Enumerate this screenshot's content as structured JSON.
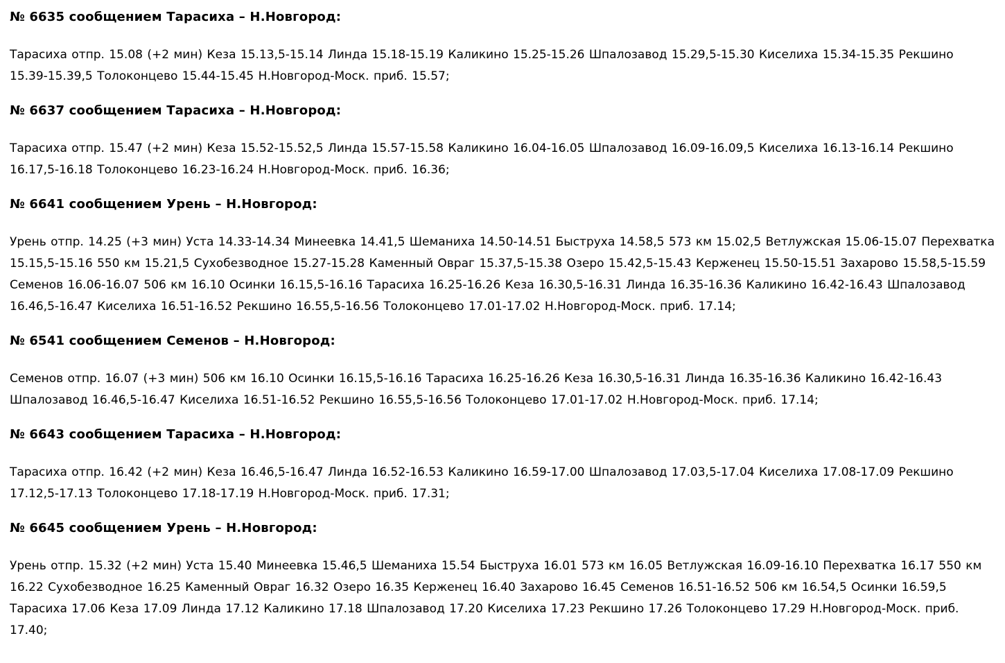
{
  "page": {
    "background_color": "#ffffff",
    "text_color": "#000000",
    "document_type": "suburban train timetable"
  },
  "schedules": [
    {
      "heading": "№ 6635 сообщением Тарасиха – Н.Новгород:",
      "body": "Тарасиха отпр. 15.08 (+2 мин) Кеза 15.13,5-15.14 Линда 15.18-15.19 Каликино 15.25-15.26 Шпалозавод 15.29,5-15.30 Киселиха 15.34-15.35 Рекшино 15.39-15.39,5 Толоконцево 15.44-15.45 Н.Новгород-Моск. приб. 15.57;"
    },
    {
      "heading": "№ 6637 сообщением Тарасиха – Н.Новгород:",
      "body": "Тарасиха отпр. 15.47 (+2 мин) Кеза 15.52-15.52,5 Линда 15.57-15.58 Каликино 16.04-16.05 Шпалозавод 16.09-16.09,5 Киселиха 16.13-16.14 Рекшино 16.17,5-16.18 Толоконцево 16.23-16.24 Н.Новгород-Моск. приб. 16.36;"
    },
    {
      "heading": "№ 6641 сообщением Урень – Н.Новгород:",
      "body": "Урень отпр. 14.25 (+3 мин) Уста 14.33-14.34 Минеевка 14.41,5 Шеманиха 14.50-14.51 Быструха 14.58,5 573 км 15.02,5 Ветлужская 15.06-15.07 Перехватка 15.15,5-15.16 550 км 15.21,5 Сухобезводное 15.27-15.28 Каменный Овраг 15.37,5-15.38 Озеро 15.42,5-15.43 Керженец 15.50-15.51 Захарово 15.58,5-15.59 Семенов 16.06-16.07 506 км 16.10 Осинки 16.15,5-16.16 Тарасиха 16.25-16.26 Кеза 16.30,5-16.31 Линда 16.35-16.36 Каликино 16.42-16.43 Шпалозавод 16.46,5-16.47 Киселиха 16.51-16.52 Рекшино 16.55,5-16.56 Толоконцево 17.01-17.02 Н.Новгород-Моск. приб. 17.14;"
    },
    {
      "heading": "№ 6541 сообщением Семенов – Н.Новгород:",
      "body": "Семенов отпр. 16.07 (+3 мин) 506 км 16.10 Осинки 16.15,5-16.16 Тарасиха 16.25-16.26 Кеза 16.30,5-16.31 Линда 16.35-16.36 Каликино 16.42-16.43 Шпалозавод 16.46,5-16.47 Киселиха 16.51-16.52 Рекшино 16.55,5-16.56 Толоконцево 17.01-17.02 Н.Новгород-Моск. приб. 17.14;"
    },
    {
      "heading": "№ 6643 сообщением Тарасиха – Н.Новгород:",
      "body": "Тарасиха отпр. 16.42 (+2 мин) Кеза 16.46,5-16.47 Линда 16.52-16.53 Каликино 16.59-17.00 Шпалозавод 17.03,5-17.04 Киселиха 17.08-17.09 Рекшино 17.12,5-17.13 Толоконцево 17.18-17.19 Н.Новгород-Моск. приб. 17.31;"
    },
    {
      "heading": "№ 6645 сообщением Урень – Н.Новгород:",
      "body": "Урень отпр. 15.32 (+2 мин) Уста 15.40 Минеевка 15.46,5 Шеманиха 15.54 Быструха 16.01 573 км 16.05 Ветлужская 16.09-16.10 Перехватка 16.17 550 км 16.22 Сухобезводное 16.25 Каменный Овраг 16.32 Озеро 16.35 Керженец 16.40 Захарово 16.45 Семенов 16.51-16.52 506 км 16.54,5 Осинки 16.59,5 Тарасиха 17.06 Кеза 17.09 Линда 17.12 Каликино 17.18 Шпалозавод 17.20 Киселиха 17.23 Рекшино 17.26 Толоконцево 17.29 Н.Новгород-Моск. приб. 17.40;"
    }
  ]
}
